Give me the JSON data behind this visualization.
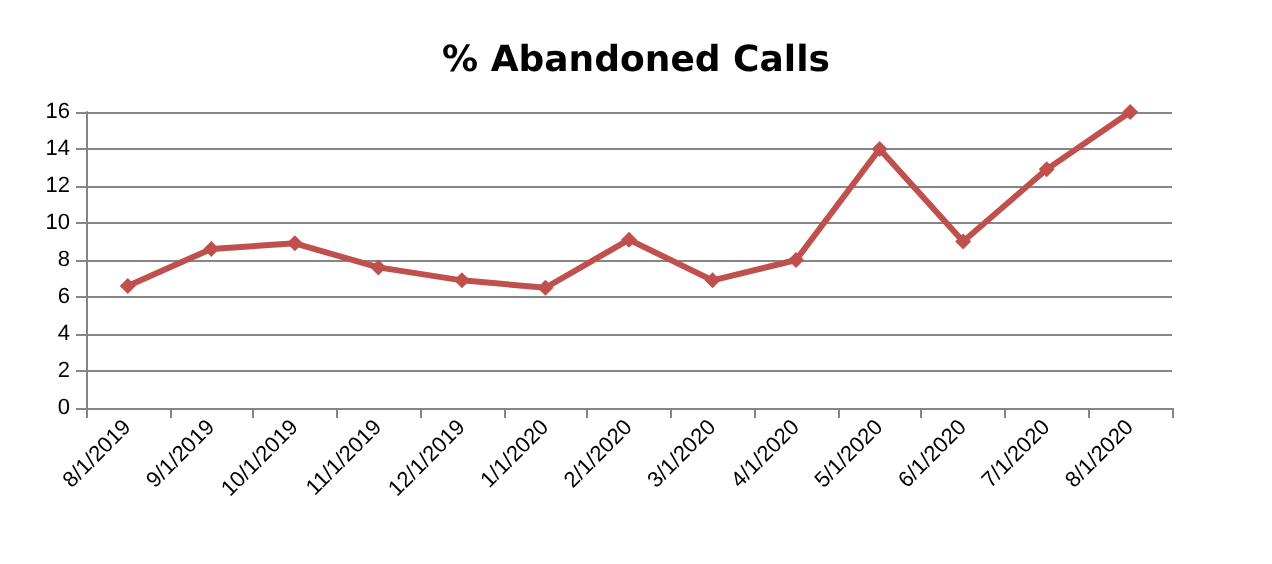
{
  "chart_data": {
    "type": "line",
    "title": "% Abandoned Calls",
    "categories": [
      "8/1/2019",
      "9/1/2019",
      "10/1/2019",
      "11/1/2019",
      "12/1/2019",
      "1/1/2020",
      "2/1/2020",
      "3/1/2020",
      "4/1/2020",
      "5/1/2020",
      "6/1/2020",
      "7/1/2020",
      "8/1/2020"
    ],
    "series": [
      {
        "color": "#c0504d",
        "values": [
          6.6,
          8.6,
          8.9,
          7.6,
          6.9,
          6.5,
          9.1,
          6.9,
          8.0,
          14.0,
          9.0,
          12.9,
          16
        ]
      }
    ],
    "ylim": [
      0,
      16
    ],
    "yticks": [
      0,
      2,
      4,
      6,
      8,
      10,
      12,
      14,
      16
    ],
    "grid": "y",
    "marker": "diamond",
    "line_style": "solid"
  }
}
